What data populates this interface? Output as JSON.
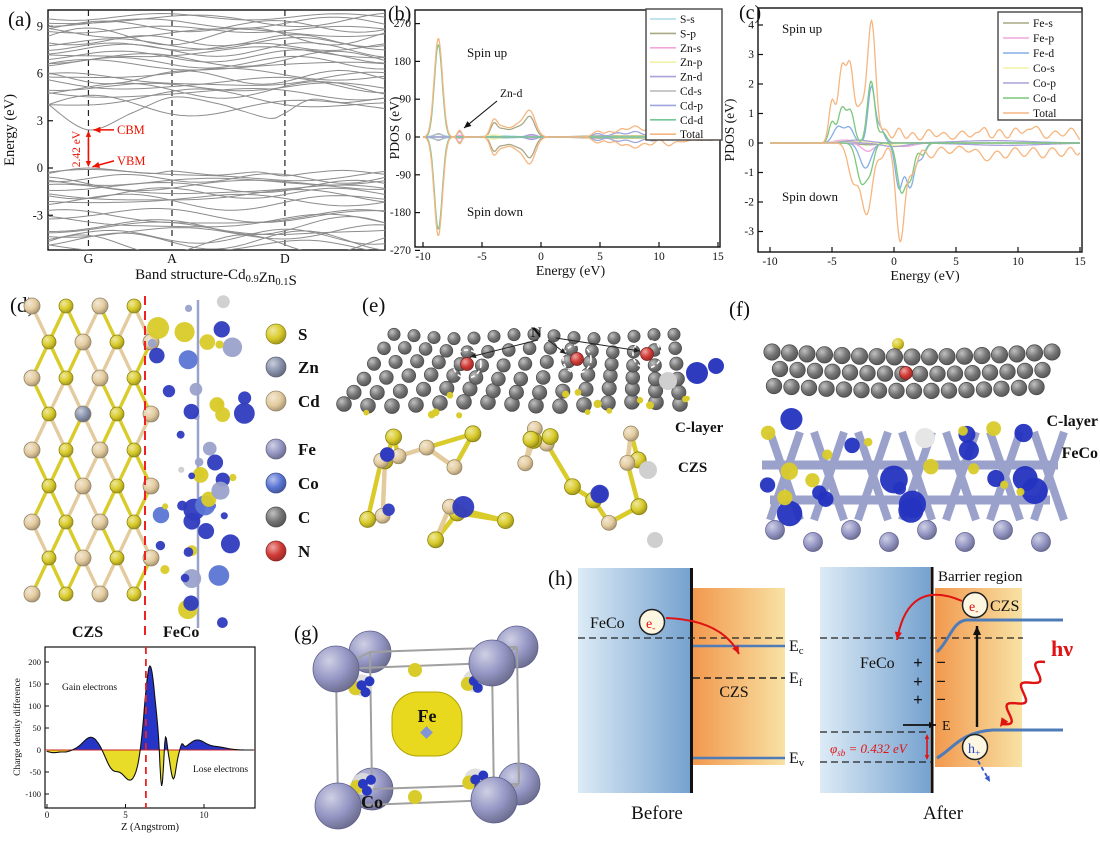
{
  "panels": {
    "a_label": "(a)",
    "b_label": "(b)",
    "c_label": "(c)",
    "d_label": "(d)",
    "e_label": "(e)",
    "f_label": "(f)",
    "g_label": "(g)",
    "h_label": "(h)",
    "d": {
      "czs": "CZS",
      "feco": "FeCo",
      "atoms": [
        {
          "label": "S",
          "color": "#d9cb2a"
        },
        {
          "label": "Zn",
          "color": "#8791ab"
        },
        {
          "label": "Cd",
          "color": "#e3cb9e"
        },
        {
          "label": "Fe",
          "color": "#9596c4"
        },
        {
          "label": "Co",
          "color": "#5b76d5"
        },
        {
          "label": "C",
          "color": "#757575"
        },
        {
          "label": "N",
          "color": "#d23a35"
        }
      ]
    },
    "e": {
      "n": "N",
      "c_layer": "C-layer",
      "czs": "CZS"
    },
    "f": {
      "c_layer": "C-layer",
      "feco": "FeCo"
    },
    "g": {
      "fe": "Fe",
      "co": "Co"
    },
    "h": {
      "feco": "FeCo",
      "czs": "CZS",
      "electron": "e",
      "electron_sup": "-",
      "hole": "h",
      "hole_sup": "+",
      "ec": [
        "E",
        "c"
      ],
      "ef": [
        "E",
        "f"
      ],
      "ev": [
        "E",
        "v"
      ],
      "barrier": "Barrier region",
      "efield": "E",
      "hnu": "hν",
      "phi_sym": "φ",
      "phi_sub": "sb",
      "phi_val": " = 0.432 eV",
      "before": "Before",
      "after": "After",
      "plus": "+",
      "minus": "−",
      "blue_from": "#dcebf6",
      "blue_to": "#76a2cf",
      "orange_from": "#f2994e",
      "orange_to": "#f8e2a4",
      "band_color": "#4f7cb8",
      "red": "#e01212"
    }
  },
  "chart_data": [
    {
      "id": "a",
      "type": "line",
      "title_parts": [
        [
          "Band structure-Cd",
          0
        ],
        [
          "0.9",
          1
        ],
        [
          "Zn",
          0
        ],
        [
          "0.1",
          1
        ],
        [
          "S",
          0
        ]
      ],
      "ylabel": "Energy (eV)",
      "yticks": [
        9,
        6,
        3,
        0,
        -3
      ],
      "ylim": [
        -5.2,
        10.2
      ],
      "kpoint_labels": [
        "G",
        "A",
        "D"
      ],
      "kpoint_pos": [
        0.12,
        0.368,
        0.703
      ],
      "annotations": {
        "cbm": "CBM",
        "vbm": "VBM",
        "gap_label": "2.42 eV",
        "gap_eV": 2.42
      },
      "band_color": "#8c8c8c",
      "accent_color": "#ee1100",
      "cbm_band": [
        [
          0,
          4.05
        ],
        [
          0.12,
          2.42
        ],
        [
          0.25,
          3.5
        ],
        [
          0.37,
          4.5
        ],
        [
          0.5,
          4.1
        ],
        [
          0.58,
          3.6
        ],
        [
          0.66,
          3.15
        ],
        [
          0.7,
          3.45
        ],
        [
          0.78,
          4.35
        ],
        [
          0.88,
          4.15
        ],
        [
          1,
          4.45
        ]
      ],
      "vbm_band": [
        [
          0,
          -0.35
        ],
        [
          0.12,
          0.0
        ],
        [
          0.3,
          -0.35
        ],
        [
          0.37,
          -0.2
        ],
        [
          0.5,
          -0.45
        ],
        [
          0.62,
          -0.25
        ],
        [
          0.7,
          -0.5
        ],
        [
          0.78,
          -0.3
        ],
        [
          0.88,
          -0.15
        ],
        [
          1,
          -0.4
        ]
      ],
      "bands": [
        [
          -0.45,
          0.3
        ],
        [
          -0.65,
          0.35
        ],
        [
          -0.85,
          0.3
        ],
        [
          -1.05,
          0.4
        ],
        [
          -1.2,
          0.35
        ],
        [
          -1.4,
          0.3
        ],
        [
          -1.6,
          0.45
        ],
        [
          -1.8,
          0.35
        ],
        [
          -2.0,
          0.3
        ],
        [
          -2.15,
          0.4
        ],
        [
          -3.0,
          0.35
        ],
        [
          -3.2,
          0.45
        ],
        [
          -3.45,
          0.4
        ],
        [
          -3.7,
          0.5
        ],
        [
          -3.9,
          0.35
        ],
        [
          -4.1,
          0.45
        ],
        [
          -4.35,
          0.4
        ],
        [
          -4.6,
          0.5
        ],
        [
          -4.85,
          0.45
        ],
        [
          -5.1,
          0.4
        ],
        [
          3.9,
          0.55
        ],
        [
          4.35,
          0.5
        ],
        [
          4.75,
          0.35
        ],
        [
          4.95,
          0.4
        ],
        [
          5.15,
          0.35
        ],
        [
          5.35,
          0.45
        ],
        [
          5.55,
          0.4
        ],
        [
          5.75,
          0.35
        ],
        [
          5.95,
          0.3
        ],
        [
          6.5,
          0.3
        ],
        [
          6.7,
          0.35
        ],
        [
          6.9,
          0.4
        ],
        [
          7.1,
          0.35
        ],
        [
          7.3,
          0.3
        ],
        [
          7.5,
          0.4
        ],
        [
          7.7,
          0.35
        ],
        [
          7.9,
          0.3
        ],
        [
          8.1,
          0.35
        ],
        [
          8.35,
          0.4
        ],
        [
          8.6,
          0.35
        ],
        [
          8.8,
          0.3
        ],
        [
          9.0,
          0.35
        ],
        [
          9.2,
          0.3
        ],
        [
          9.4,
          0.35
        ],
        [
          9.6,
          0.3
        ]
      ]
    },
    {
      "id": "b",
      "type": "line",
      "ylabel": "PDOS (eV)",
      "xlabel": "Energy (eV)",
      "xticks": [
        -10,
        -5,
        0,
        5,
        10,
        15
      ],
      "yticks": [
        270,
        180,
        90,
        0,
        -90,
        -180,
        -270
      ],
      "xlim": [
        -10,
        15
      ],
      "ylim": [
        -270,
        270
      ],
      "spin_up_label": "Spin up",
      "spin_down_label": "Spin down",
      "peak_annotation": "Zn-d",
      "series": [
        {
          "name": "S-s",
          "color": "#aadbe8",
          "peaks": [
            [
              -8.7,
              0.5,
              6
            ],
            [
              -3.5,
              1.2,
              3
            ]
          ]
        },
        {
          "name": "S-p",
          "color": "#a9a886",
          "peaks": [
            [
              -4.0,
              0.28,
              30
            ],
            [
              -3.3,
              0.4,
              16
            ],
            [
              -1.9,
              0.7,
              24
            ],
            [
              -0.9,
              0.4,
              40
            ],
            [
              6,
              2.5,
              3
            ],
            [
              10,
              2,
              2
            ]
          ]
        },
        {
          "name": "Zn-s",
          "color": "#f2a6db",
          "peaks": [
            [
              -6.9,
              0.2,
              4
            ],
            [
              -0.9,
              0.4,
              4
            ]
          ]
        },
        {
          "name": "Zn-p",
          "color": "#f2f2a6",
          "peaks": [
            [
              -4,
              0.5,
              5
            ],
            [
              8,
              3,
              2
            ]
          ]
        },
        {
          "name": "Zn-d",
          "color": "#aaa3d9",
          "peaks": [
            [
              -6.9,
              0.18,
              13
            ]
          ]
        },
        {
          "name": "Cd-s",
          "color": "#b5b5b5",
          "peaks": [
            [
              -8.7,
              0.3,
              8
            ],
            [
              5,
              0.5,
              3
            ]
          ]
        },
        {
          "name": "Cd-p",
          "color": "#9fa6db",
          "peaks": [
            [
              -0.8,
              0.4,
              6
            ],
            [
              4.8,
              0.4,
              8
            ],
            [
              6.5,
              0.5,
              10
            ],
            [
              8.0,
              0.5,
              13
            ],
            [
              9.5,
              0.4,
              9
            ],
            [
              10.8,
              0.4,
              7
            ],
            [
              12.5,
              0.6,
              5
            ]
          ]
        },
        {
          "name": "Cd-d",
          "color": "#74c694",
          "peaks": [
            [
              -8.7,
              0.33,
              220
            ]
          ]
        },
        {
          "name": "Total",
          "color": "#f6b680",
          "peaks": [
            [
              -8.7,
              0.35,
              235
            ],
            [
              -6.9,
              0.18,
              16
            ],
            [
              -4.0,
              0.3,
              38
            ],
            [
              -3.3,
              0.4,
              20
            ],
            [
              -1.9,
              0.7,
              30
            ],
            [
              -0.9,
              0.45,
              52
            ],
            [
              4.8,
              0.4,
              14
            ],
            [
              5.8,
              0.3,
              12
            ],
            [
              6.8,
              0.4,
              18
            ],
            [
              8.0,
              0.5,
              26
            ],
            [
              9.3,
              0.4,
              18
            ],
            [
              10.8,
              0.4,
              20
            ],
            [
              12.0,
              0.5,
              11
            ],
            [
              13.5,
              0.6,
              8
            ],
            [
              14.5,
              0.3,
              6
            ]
          ]
        }
      ]
    },
    {
      "id": "c",
      "type": "line",
      "ylabel": "PDOS (eV)",
      "xlabel": "Energy (eV)",
      "xticks": [
        -10,
        -5,
        0,
        5,
        10,
        15
      ],
      "yticks": [
        4,
        3,
        2,
        1,
        0,
        -1,
        -2,
        -3
      ],
      "xlim": [
        -10,
        15
      ],
      "ylim": [
        -3.6,
        4.6
      ],
      "spin_up_label": "Spin up",
      "spin_down_label": "Spin down",
      "series": [
        {
          "name": "Fe-s",
          "color": "#a9a886",
          "up": [
            [
              -4,
              1,
              0.06
            ]
          ],
          "down": [
            [
              -2,
              1,
              0.06
            ]
          ]
        },
        {
          "name": "Fe-p",
          "color": "#f2a6db",
          "up": [
            [
              -4,
              0.8,
              0.1
            ]
          ],
          "down": [
            [
              -2.1,
              0.5,
              0.28
            ],
            [
              0.8,
              0.8,
              0.12
            ]
          ]
        },
        {
          "name": "Fe-d",
          "color": "#85aee8",
          "up": [
            [
              -4.5,
              0.4,
              0.55
            ],
            [
              -3.6,
              0.35,
              0.5
            ],
            [
              -1.82,
              0.28,
              1.9
            ],
            [
              -1.1,
              0.3,
              0.5
            ]
          ],
          "down": [
            [
              -2.3,
              0.45,
              0.85
            ],
            [
              0.4,
              0.3,
              1.5
            ],
            [
              1.3,
              0.35,
              1.5
            ],
            [
              2.2,
              0.3,
              0.5
            ]
          ]
        },
        {
          "name": "Co-s",
          "color": "#f2f2a6",
          "up": [
            [
              -3.5,
              1,
              0.08
            ]
          ],
          "down": [
            [
              0.5,
              1,
              0.08
            ]
          ]
        },
        {
          "name": "Co-p",
          "color": "#aaa3d9",
          "up": [
            [
              -3,
              1,
              0.1
            ],
            [
              8,
              3,
              0.08
            ]
          ],
          "down": [
            [
              0,
              1,
              0.12
            ],
            [
              9,
              3,
              0.08
            ]
          ]
        },
        {
          "name": "Co-d",
          "color": "#7cc87c",
          "up": [
            [
              -5.0,
              0.25,
              0.7
            ],
            [
              -4.2,
              0.3,
              1.15
            ],
            [
              -3.5,
              0.3,
              1.05
            ],
            [
              -1.85,
              0.3,
              2.1
            ],
            [
              -0.9,
              0.3,
              0.35
            ]
          ],
          "down": [
            [
              -2.6,
              0.4,
              1.35
            ],
            [
              -1.9,
              0.3,
              0.75
            ],
            [
              0.6,
              0.35,
              1.65
            ],
            [
              1.35,
              0.3,
              1.1
            ],
            [
              2.3,
              0.3,
              0.4
            ]
          ]
        },
        {
          "name": "Total",
          "color": "#f6b680",
          "up": [
            [
              -5.0,
              0.25,
              1.4
            ],
            [
              -4.2,
              0.3,
              2.5
            ],
            [
              -3.55,
              0.28,
              2.4
            ],
            [
              -2.7,
              0.4,
              1.2
            ],
            [
              -1.8,
              0.33,
              4.05
            ],
            [
              -0.7,
              0.3,
              0.45
            ],
            [
              0.4,
              0.3,
              0.5
            ],
            [
              1.5,
              0.3,
              0.35
            ],
            [
              2.8,
              0.35,
              0.45
            ],
            [
              4.0,
              0.4,
              0.35
            ],
            [
              5.5,
              0.4,
              0.4
            ],
            [
              6.6,
              0.3,
              0.3
            ],
            [
              7.3,
              0.3,
              0.5
            ],
            [
              8.5,
              0.35,
              0.45
            ],
            [
              9.8,
              0.35,
              0.5
            ],
            [
              10.7,
              0.3,
              0.35
            ],
            [
              11.5,
              0.4,
              0.55
            ],
            [
              13,
              0.4,
              0.4
            ],
            [
              14.3,
              0.4,
              0.5
            ]
          ],
          "down": [
            [
              -3.3,
              0.4,
              1.25
            ],
            [
              -2.2,
              0.45,
              2.4
            ],
            [
              -1.0,
              0.3,
              0.45
            ],
            [
              0.5,
              0.35,
              3.3
            ],
            [
              1.5,
              0.4,
              1.0
            ],
            [
              3.0,
              0.4,
              0.5
            ],
            [
              4.5,
              0.4,
              0.35
            ],
            [
              6,
              0.4,
              0.3
            ],
            [
              7.5,
              0.5,
              0.6
            ],
            [
              9,
              0.4,
              0.5
            ],
            [
              10.5,
              0.4,
              0.45
            ],
            [
              12,
              0.4,
              0.5
            ],
            [
              13.5,
              0.4,
              0.45
            ],
            [
              14.8,
              0.3,
              0.4
            ]
          ]
        }
      ]
    },
    {
      "id": "d_charge",
      "type": "area",
      "ylabel": "Charge density difference",
      "xlabel": "Z (Angstrom)",
      "yticks": [
        200,
        150,
        100,
        50,
        0,
        -50,
        -100
      ],
      "xticks": [
        0,
        5,
        10
      ],
      "xlim": [
        0,
        13.2
      ],
      "ylim": [
        -130,
        230
      ],
      "gain_label": "Gain electrons",
      "lose_label": "Lose electrons",
      "pos_color": "#2635c8",
      "neg_color": "#e8dc28",
      "line_color": "#111111",
      "zero_line_color": "#cc2222",
      "divider_color": "#ee2222",
      "divider_z": 6.3,
      "peaks": [
        [
          0.4,
          0.35,
          -6
        ],
        [
          1.2,
          0.3,
          -4
        ],
        [
          2.8,
          0.5,
          29
        ],
        [
          4.15,
          0.4,
          -38
        ],
        [
          5.3,
          0.55,
          -68
        ],
        [
          6.55,
          0.33,
          196
        ],
        [
          7.3,
          0.11,
          -97
        ],
        [
          7.55,
          0.09,
          36
        ],
        [
          8.05,
          0.18,
          -66
        ],
        [
          8.6,
          0.09,
          11
        ],
        [
          9.55,
          0.5,
          22
        ],
        [
          10.8,
          0.6,
          7
        ]
      ]
    }
  ]
}
